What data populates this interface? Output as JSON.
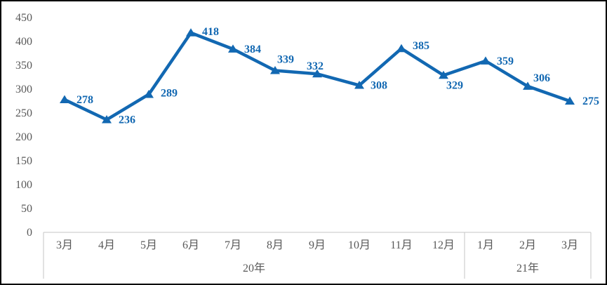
{
  "chart_data": {
    "type": "line",
    "title": "",
    "xlabel": "",
    "ylabel": "",
    "categories": [
      "3月",
      "4月",
      "5月",
      "6月",
      "7月",
      "8月",
      "9月",
      "10月",
      "11月",
      "12月",
      "1月",
      "2月",
      "3月"
    ],
    "values": [
      278,
      236,
      289,
      418,
      384,
      339,
      332,
      308,
      385,
      329,
      359,
      306,
      275
    ],
    "category_groups": [
      {
        "label": "20年",
        "count": 10
      },
      {
        "label": "21年",
        "count": 3
      }
    ],
    "yticks": [
      0,
      50,
      100,
      150,
      200,
      250,
      300,
      350,
      400,
      450
    ],
    "ylim": [
      0,
      450
    ],
    "grid": false,
    "legend": "none",
    "marker": "triangle-up",
    "data_labels_visible": true,
    "colors": {
      "line": "#1268B2",
      "marker": "#1268B2",
      "data_label": "#1268B2",
      "axis_text": "#595959",
      "axis_line": "#C6C6C6",
      "background": "#FFFFFF",
      "border": "#000000"
    }
  }
}
